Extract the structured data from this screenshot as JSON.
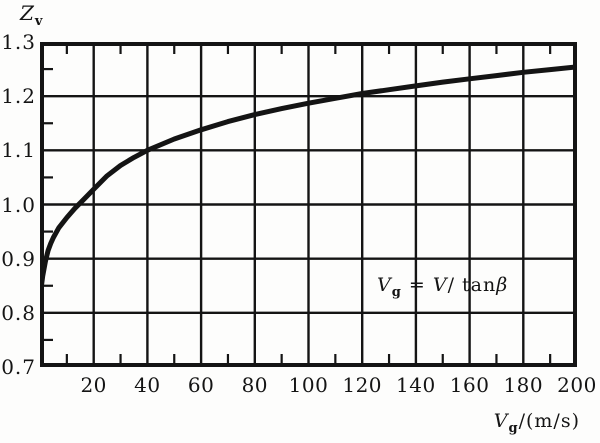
{
  "figure": {
    "y_axis_title": {
      "main": "Z",
      "sub": "v"
    },
    "x_axis_title": {
      "main": "V",
      "sub": "g",
      "rest": "/(m/s)"
    },
    "annotation": {
      "var1": "V",
      "var1_sub": "g",
      "eq": " = ",
      "var2": "V",
      "slash_tan": "/ tan",
      "beta": "β"
    }
  },
  "chart_data": {
    "type": "line",
    "title": "",
    "xlabel": "Vg/(m/s)",
    "ylabel": "Zv",
    "xlim": [
      0,
      200
    ],
    "ylim": [
      0.7,
      1.3
    ],
    "grid": true,
    "x_major_ticks": [
      20,
      40,
      60,
      80,
      100,
      120,
      140,
      160,
      180,
      200
    ],
    "x_tick_labels": [
      "20",
      "40",
      "60",
      "80",
      "100",
      "120",
      "140",
      "160",
      "180",
      "200"
    ],
    "x_minor_step": 10,
    "y_major_ticks": [
      1.3,
      1.2,
      1.1,
      1.0,
      0.9,
      0.8,
      0.7
    ],
    "y_tick_labels": [
      "1.3",
      "1.2",
      "1.1",
      "1.0",
      "0.9",
      "0.8",
      "0.7"
    ],
    "y_minor_step": 0.05,
    "annotation": "Vg = V/tanβ",
    "line_color": "#141414",
    "series": [
      {
        "name": "Zv",
        "points": [
          [
            0,
            0.83
          ],
          [
            1,
            0.868
          ],
          [
            2,
            0.895
          ],
          [
            3,
            0.915
          ],
          [
            4,
            0.928
          ],
          [
            5,
            0.939
          ],
          [
            7,
            0.957
          ],
          [
            10,
            0.976
          ],
          [
            13,
            0.993
          ],
          [
            16,
            1.008
          ],
          [
            20,
            1.028
          ],
          [
            25,
            1.053
          ],
          [
            30,
            1.072
          ],
          [
            35,
            1.087
          ],
          [
            40,
            1.1
          ],
          [
            50,
            1.121
          ],
          [
            60,
            1.138
          ],
          [
            70,
            1.153
          ],
          [
            80,
            1.166
          ],
          [
            90,
            1.177
          ],
          [
            100,
            1.187
          ],
          [
            110,
            1.196
          ],
          [
            120,
            1.205
          ],
          [
            130,
            1.212
          ],
          [
            140,
            1.219
          ],
          [
            150,
            1.226
          ],
          [
            160,
            1.232
          ],
          [
            170,
            1.238
          ],
          [
            180,
            1.244
          ],
          [
            190,
            1.249
          ],
          [
            200,
            1.254
          ]
        ]
      }
    ]
  }
}
